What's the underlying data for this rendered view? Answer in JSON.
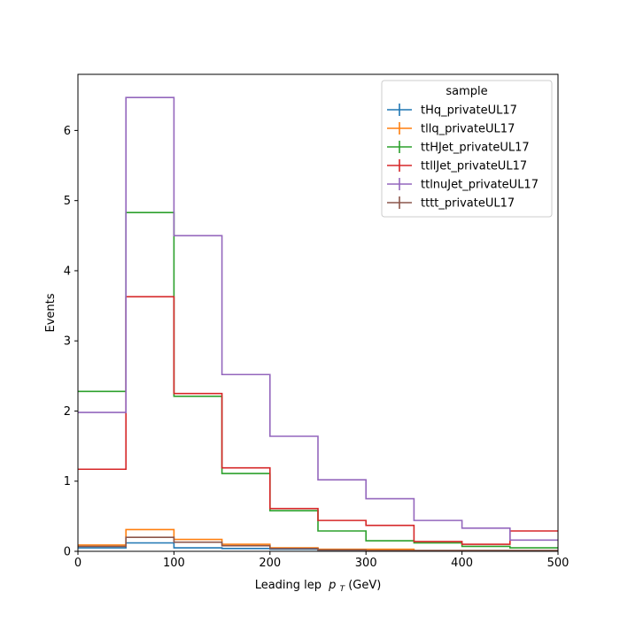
{
  "chart_data": {
    "type": "step",
    "xlabel": "Leading lep",
    "xlabel_sub": "T",
    "xlabel_p": "p",
    "xlabel_unit": " (GeV)",
    "ylabel": "Events",
    "xlim": [
      0,
      500
    ],
    "ylim": [
      0,
      6.8
    ],
    "x_ticks": [
      0,
      100,
      200,
      300,
      400,
      500
    ],
    "y_ticks": [
      0,
      1,
      2,
      3,
      4,
      5,
      6
    ],
    "bin_edges": [
      0,
      50,
      100,
      150,
      200,
      250,
      300,
      350,
      400,
      450,
      500
    ],
    "legend": {
      "title": "sample",
      "placement": "top-right"
    },
    "series": [
      {
        "name": "tHq_privateUL17",
        "color": "#1f77b4",
        "values": [
          0.05,
          0.12,
          0.05,
          0.04,
          0.03,
          0.02,
          0.01,
          0.01,
          0.01,
          0.01
        ]
      },
      {
        "name": "tllq_privateUL17",
        "color": "#ff7f0e",
        "values": [
          0.09,
          0.31,
          0.17,
          0.1,
          0.05,
          0.03,
          0.03,
          0.01,
          0.01,
          0.01
        ]
      },
      {
        "name": "ttHJet_privateUL17",
        "color": "#2ca02c",
        "values": [
          2.28,
          4.83,
          2.21,
          1.11,
          0.58,
          0.29,
          0.15,
          0.12,
          0.07,
          0.05
        ]
      },
      {
        "name": "ttllJet_privateUL17",
        "color": "#d62728",
        "values": [
          1.17,
          3.63,
          2.25,
          1.19,
          0.61,
          0.44,
          0.37,
          0.14,
          0.1,
          0.29
        ]
      },
      {
        "name": "ttlnuJet_privateUL17",
        "color": "#9467bd",
        "values": [
          1.98,
          6.47,
          4.5,
          2.52,
          1.64,
          1.02,
          0.75,
          0.44,
          0.33,
          0.16
        ]
      },
      {
        "name": "tttt_privateUL17",
        "color": "#8c564b",
        "values": [
          0.07,
          0.2,
          0.13,
          0.08,
          0.04,
          0.02,
          0.01,
          0.01,
          0.01,
          0.01
        ]
      }
    ]
  }
}
